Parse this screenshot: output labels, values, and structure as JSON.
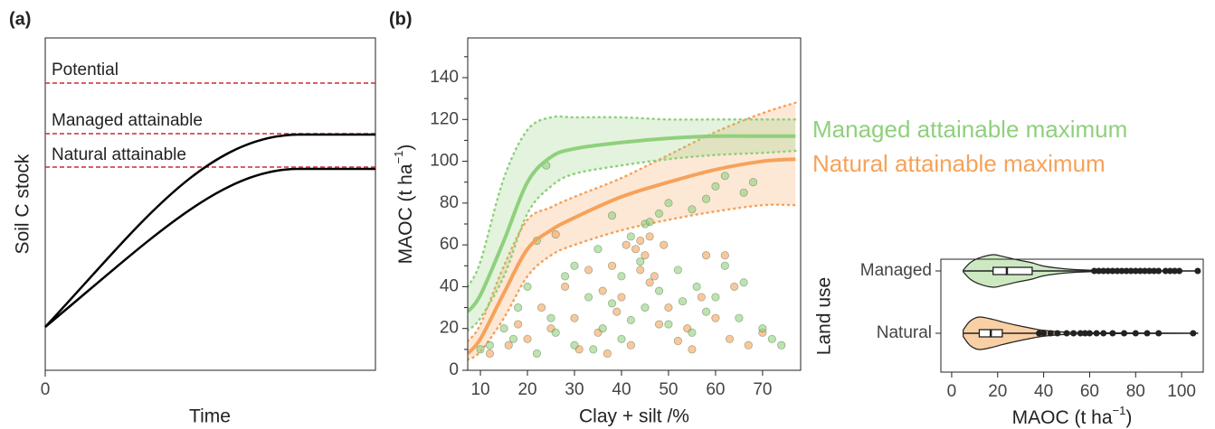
{
  "chart_data": [
    {
      "type": "line",
      "panel_label": "(a)",
      "xlabel": "Time",
      "ylabel": "Soil C stock",
      "xticks": [
        0
      ],
      "annotations": [
        "Potential",
        "Managed attainable",
        "Natural attainable"
      ]
    },
    {
      "type": "scatter",
      "panel_label": "(b)",
      "xlabel": "Clay + silt /%",
      "ylabel": [
        "MAOC (t ha",
        "−1",
        ")"
      ],
      "xlim": [
        7.3,
        78.1
      ],
      "ylim": [
        0,
        159
      ],
      "xticks": [
        10,
        20,
        30,
        40,
        50,
        60,
        70
      ],
      "yticks": [
        0,
        20,
        40,
        60,
        80,
        100,
        120,
        140
      ],
      "yminor": [
        10,
        30,
        50,
        70,
        90,
        110,
        130,
        150
      ],
      "series": [
        {
          "name": "Natural attainable maximum",
          "color": "#f6a25a",
          "x": [
            7.3,
            10,
            15,
            20,
            25,
            30,
            40,
            50,
            60,
            70,
            77
          ],
          "values": [
            8,
            15,
            37,
            58,
            67,
            73,
            83,
            90,
            96,
            100,
            101
          ],
          "upper": [
            14,
            22,
            50,
            72,
            78,
            83,
            92,
            103,
            114,
            123,
            128
          ],
          "lower": [
            5,
            9,
            25,
            45,
            55,
            60,
            67,
            72,
            76,
            79,
            79
          ],
          "points_x": [
            44,
            46,
            43,
            45,
            41,
            38,
            40,
            30,
            25,
            20,
            16,
            12,
            35,
            48,
            52,
            55,
            60,
            63,
            67,
            70,
            28,
            33,
            47,
            50,
            57,
            23,
            18,
            36,
            42,
            31,
            58,
            26,
            64,
            62,
            46,
            39,
            54,
            49,
            44,
            37
          ],
          "points_y": [
            62,
            64,
            58,
            55,
            60,
            50,
            35,
            25,
            20,
            15,
            12,
            8,
            18,
            22,
            14,
            10,
            25,
            15,
            12,
            18,
            40,
            48,
            45,
            30,
            35,
            30,
            22,
            38,
            12,
            10,
            55,
            65,
            40,
            55,
            42,
            28,
            20,
            60,
            48,
            8
          ]
        },
        {
          "name": "Managed attainable maximum",
          "color": "#8fd07c",
          "x": [
            7.3,
            10,
            15,
            20,
            25,
            30,
            40,
            50,
            60,
            70,
            77
          ],
          "values": [
            28,
            36,
            62,
            90,
            102,
            106,
            109,
            111,
            112,
            112,
            112
          ],
          "upper": [
            40,
            52,
            92,
            115,
            121,
            121,
            121,
            120,
            120,
            120,
            120
          ],
          "lower": [
            19,
            25,
            45,
            75,
            88,
            94,
            98,
            101,
            103,
            104,
            105
          ],
          "points_x": [
            24,
            22,
            38,
            45,
            48,
            55,
            58,
            60,
            62,
            66,
            68,
            50,
            46,
            35,
            42,
            30,
            28,
            20,
            18,
            15,
            12,
            10,
            17,
            25,
            33,
            40,
            44,
            52,
            56,
            60,
            65,
            70,
            72,
            74,
            36,
            40,
            45,
            50,
            55,
            30,
            22,
            26,
            48,
            38,
            62,
            58,
            66,
            34,
            42,
            53
          ],
          "points_y": [
            98,
            62,
            74,
            70,
            75,
            77,
            82,
            88,
            93,
            85,
            90,
            80,
            71,
            58,
            64,
            50,
            45,
            40,
            30,
            20,
            12,
            10,
            15,
            25,
            35,
            45,
            52,
            48,
            40,
            35,
            25,
            20,
            15,
            12,
            20,
            15,
            30,
            22,
            18,
            12,
            8,
            18,
            38,
            32,
            50,
            28,
            42,
            10,
            24,
            33
          ]
        }
      ]
    },
    {
      "type": "violin",
      "xlabel": [
        "MAOC (t ha",
        "−1",
        ")"
      ],
      "ylabel": "Land use",
      "xlim": [
        -4.7,
        109.4
      ],
      "xticks": [
        0,
        20,
        40,
        60,
        80,
        100
      ],
      "categories": [
        "Managed",
        "Natural"
      ],
      "density_x": [
        5,
        8,
        12,
        18,
        22,
        28,
        35,
        40,
        50,
        60,
        70,
        107
      ],
      "groups": [
        {
          "color": "#cde9c2",
          "density": [
            0.05,
            0.5,
            0.8,
            1.0,
            0.9,
            0.7,
            0.5,
            0.3,
            0.12,
            0.05,
            0.02,
            0.01
          ],
          "q1": 18,
          "median": 24,
          "q3": 35,
          "whisker": [
            5,
            62
          ],
          "outliers": [
            62,
            64,
            66,
            68,
            70,
            72,
            74,
            76,
            78,
            80,
            82,
            84,
            86,
            88,
            90,
            93,
            95,
            97,
            99,
            107
          ]
        },
        {
          "color": "#f9cfa5",
          "density": [
            0.2,
            0.75,
            1.0,
            0.85,
            0.7,
            0.5,
            0.3,
            0.18,
            0.07,
            0.03,
            0.02,
            0.01
          ],
          "q1": 12,
          "median": 17,
          "q3": 22,
          "whisker": [
            5,
            37
          ],
          "outliers": [
            38,
            40,
            43,
            46,
            50,
            53,
            56,
            58,
            60,
            63,
            66,
            70,
            75,
            80,
            85,
            90,
            105
          ]
        }
      ]
    }
  ]
}
